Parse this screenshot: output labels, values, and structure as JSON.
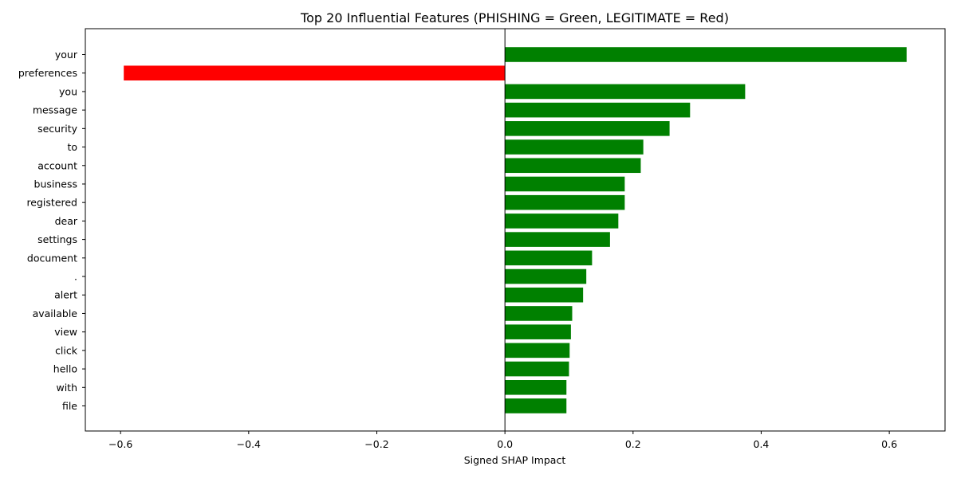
{
  "chart_data": {
    "type": "bar",
    "orientation": "horizontal",
    "title": "Top 20 Influential Features (PHISHING = Green, LEGITIMATE = Red)",
    "xlabel": "Signed SHAP Impact",
    "ylabel": "",
    "xlim": [
      -0.655,
      0.687
    ],
    "xticks": [
      -0.6,
      -0.4,
      -0.2,
      0.0,
      0.2,
      0.4,
      0.6
    ],
    "xtick_labels": [
      "−0.6",
      "−0.4",
      "−0.2",
      "0.0",
      "0.2",
      "0.4",
      "0.6"
    ],
    "categories": [
      "your",
      "preferences",
      "you",
      "message",
      "security",
      "to",
      "account",
      "business",
      "registered",
      "dear",
      "settings",
      "document",
      ".",
      "alert",
      "available",
      "view",
      "click",
      "hello",
      "with",
      "file"
    ],
    "values": [
      0.627,
      -0.595,
      0.375,
      0.289,
      0.257,
      0.216,
      0.212,
      0.187,
      0.187,
      0.177,
      0.164,
      0.136,
      0.127,
      0.122,
      0.105,
      0.103,
      0.101,
      0.1,
      0.096,
      0.096
    ],
    "colors": {
      "positive": "#008000",
      "negative": "#ff0000"
    },
    "grid": false,
    "legend": "none"
  }
}
